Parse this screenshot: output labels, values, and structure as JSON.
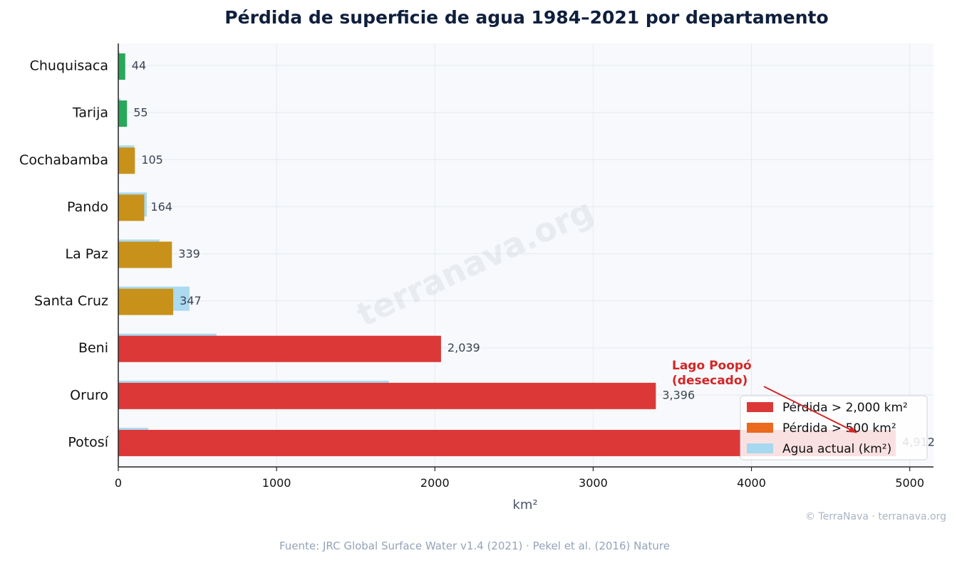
{
  "page": {
    "title": "Pérdida de superficie de agua 1984–2021 por departamento",
    "source": "Fuente: JRC Global Surface Water v1.4 (2021) · Pekel et al. (2016) Nature",
    "copyright": "© TerraNava · terranava.org",
    "watermark": "terranava.org"
  },
  "chart_data": {
    "type": "bar",
    "orientation": "horizontal",
    "title": "Pérdida de superficie de agua 1984–2021 por departamento",
    "xlabel": "km²",
    "ylabel": "",
    "xlim": [
      0,
      5150
    ],
    "xticks": [
      0,
      1000,
      2000,
      3000,
      4000,
      5000
    ],
    "grid": true,
    "legend_position": "lower-right",
    "categories": [
      "Chuquisaca",
      "Tarija",
      "Cochabamba",
      "Pando",
      "La Paz",
      "Santa Cruz",
      "Beni",
      "Oruro",
      "Potosí"
    ],
    "series": [
      {
        "name": "Agua actual (km²)",
        "color": "#a6d8f0",
        "values": [
          10,
          15,
          100,
          180,
          260,
          450,
          620,
          1710,
          190
        ]
      },
      {
        "name": "Pérdida (km²)",
        "values": [
          44,
          55,
          105,
          164,
          339,
          347,
          2039,
          3396,
          4912
        ],
        "value_labels": [
          "44",
          "55",
          "105",
          "164",
          "339",
          "347",
          "2,039",
          "3,396",
          "4,912"
        ],
        "colors": [
          "#27a85a",
          "#27a85a",
          "#c8911a",
          "#c8911a",
          "#c8911a",
          "#c8911a",
          "#dc3838",
          "#dc3838",
          "#dc3838"
        ]
      }
    ],
    "legend": [
      {
        "label": "Pérdida > 2,000 km²",
        "color": "#dc3838"
      },
      {
        "label": "Pérdida > 500 km²",
        "color": "#ea6a1e"
      },
      {
        "label": "Agua actual (km²)",
        "color": "#a6d8f0"
      }
    ],
    "annotation": {
      "text_lines": [
        "Lago Poopó",
        "(desecado)"
      ],
      "color": "#d32626",
      "target_category": "Potosí",
      "target_value": 4912
    }
  }
}
